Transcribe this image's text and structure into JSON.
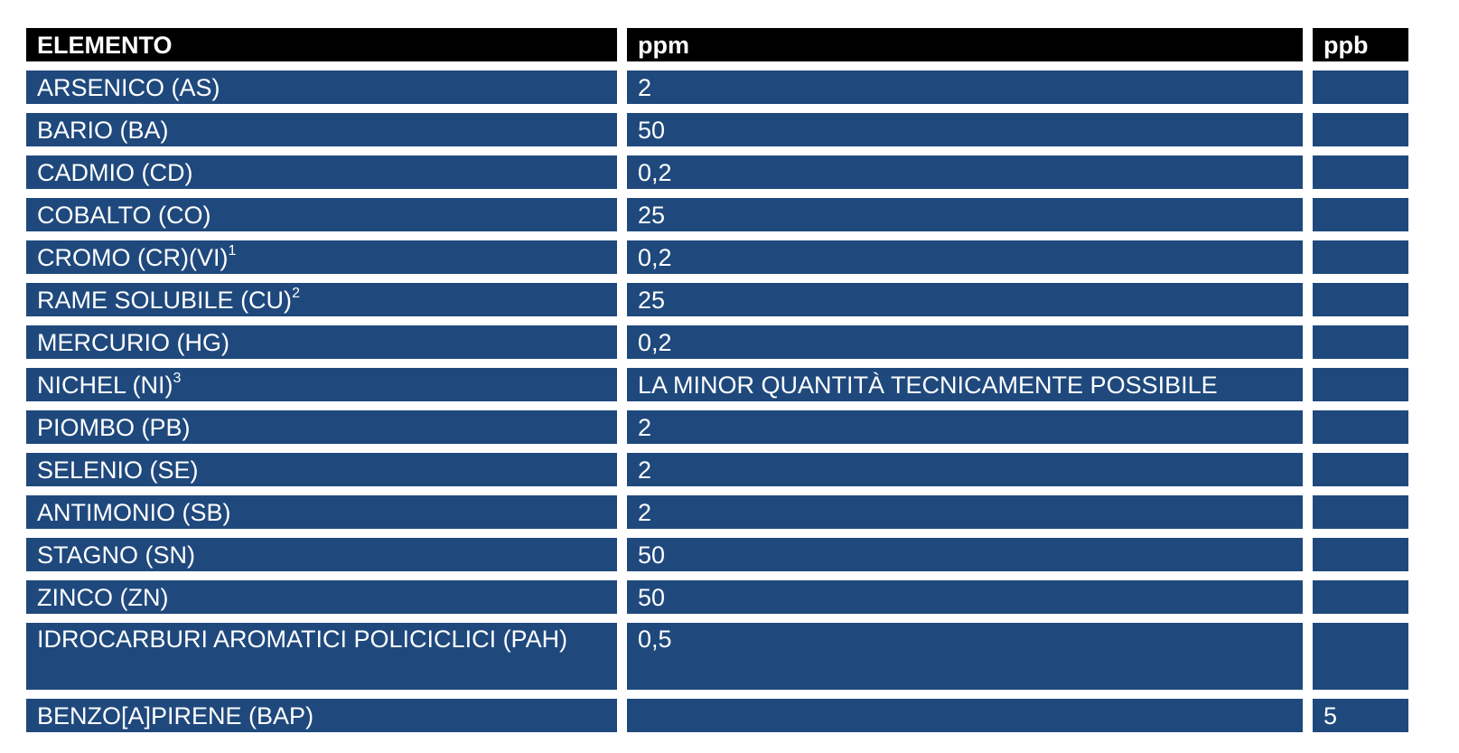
{
  "table": {
    "headers": [
      "ELEMENTO",
      "ppm",
      "ppb"
    ],
    "rows": [
      {
        "element": "ARSENICO (AS)",
        "sup": "",
        "ppm": "2",
        "ppb": ""
      },
      {
        "element": "BARIO (BA)",
        "sup": "",
        "ppm": "50",
        "ppb": ""
      },
      {
        "element": "CADMIO (CD)",
        "sup": "",
        "ppm": "0,2",
        "ppb": ""
      },
      {
        "element": "COBALTO (CO)",
        "sup": "",
        "ppm": "25",
        "ppb": ""
      },
      {
        "element": "CROMO (CR)(VI)",
        "sup": "1",
        "ppm": "0,2",
        "ppb": ""
      },
      {
        "element": "RAME SOLUBILE (CU)",
        "sup": "2",
        "ppm": "25",
        "ppb": ""
      },
      {
        "element": "MERCURIO (HG)",
        "sup": "",
        "ppm": "0,2",
        "ppb": ""
      },
      {
        "element": "NICHEL (NI)",
        "sup": "3",
        "ppm": "LA MINOR QUANTITÀ TECNICAMENTE POSSIBILE",
        "ppb": ""
      },
      {
        "element": "PIOMBO (PB)",
        "sup": "",
        "ppm": "2",
        "ppb": ""
      },
      {
        "element": "SELENIO (SE)",
        "sup": "",
        "ppm": "2",
        "ppb": ""
      },
      {
        "element": "ANTIMONIO (SB)",
        "sup": "",
        "ppm": "2",
        "ppb": ""
      },
      {
        "element": "STAGNO (SN)",
        "sup": "",
        "ppm": "50",
        "ppb": ""
      },
      {
        "element": "ZINCO (ZN)",
        "sup": "",
        "ppm": "50",
        "ppb": ""
      },
      {
        "element": "IDROCARBURI AROMATICI POLICICLICI (PAH)",
        "sup": "",
        "ppm": "0,5",
        "ppb": ""
      },
      {
        "element": "BENZO[A]PIRENE (BAP)",
        "sup": "",
        "ppm": "",
        "ppb": "5"
      }
    ]
  },
  "colors": {
    "header_bg": "#000000",
    "cell_bg": "#1f497d",
    "text": "#ffffff"
  }
}
